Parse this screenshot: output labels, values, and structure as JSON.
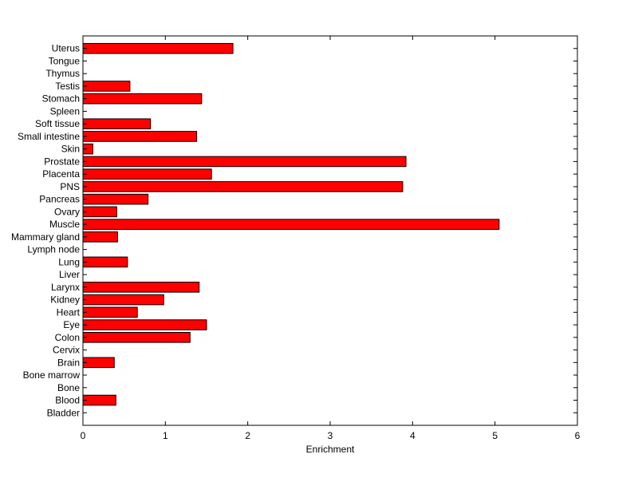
{
  "chart_data": {
    "type": "bar",
    "orientation": "horizontal",
    "title": "",
    "xlabel": "Enrichment",
    "ylabel": "",
    "xlim": [
      0,
      6
    ],
    "x_ticks": [
      "0",
      "1",
      "2",
      "3",
      "4",
      "5",
      "6"
    ],
    "grid": false,
    "legend": "none",
    "bar_color": "#ff0000",
    "bar_edge_color": "#000000",
    "categories": [
      "Uterus",
      "Tongue",
      "Thymus",
      "Testis",
      "Stomach",
      "Spleen",
      "Soft tissue",
      "Small intestine",
      "Skin",
      "Prostate",
      "Placenta",
      "PNS",
      "Pancreas",
      "Ovary",
      "Muscle",
      "Mammary gland",
      "Lymph node",
      "Lung",
      "Liver",
      "Larynx",
      "Kidney",
      "Heart",
      "Eye",
      "Colon",
      "Cervix",
      "Brain",
      "Bone marrow",
      "Bone",
      "Blood",
      "Bladder"
    ],
    "values": [
      1.82,
      0,
      0,
      0.57,
      1.44,
      0,
      0.82,
      1.38,
      0.12,
      3.92,
      1.56,
      3.88,
      0.79,
      0.41,
      5.05,
      0.42,
      0,
      0.54,
      0,
      1.41,
      0.98,
      0.66,
      1.5,
      1.3,
      0,
      0.38,
      0,
      0,
      0.4,
      0
    ]
  }
}
